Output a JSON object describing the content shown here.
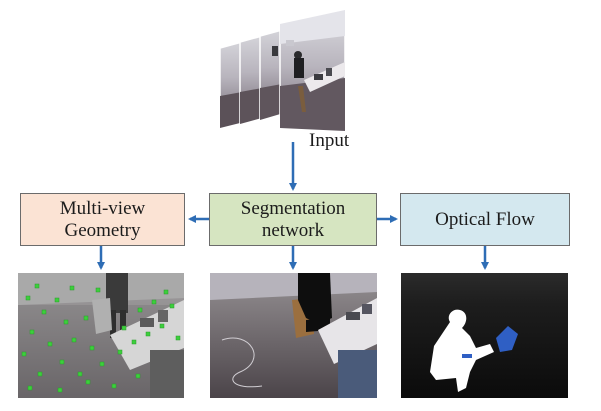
{
  "input_label": "Input",
  "boxes": {
    "multi_view_geometry": "Multi-view\nGeometry",
    "segmentation_network": "Segmentation\nnetwork",
    "optical_flow": "Optical Flow"
  },
  "colors": {
    "arrow": "#2e6db5",
    "multi_view_geometry_fill": "#fbe3d4",
    "segmentation_network_fill": "#d6e5c1",
    "optical_flow_fill": "#d4e8ef",
    "feature_points": "#3ccf3c",
    "mask_foreground": "#ffffff",
    "mask_object": "#2f5fc4"
  }
}
